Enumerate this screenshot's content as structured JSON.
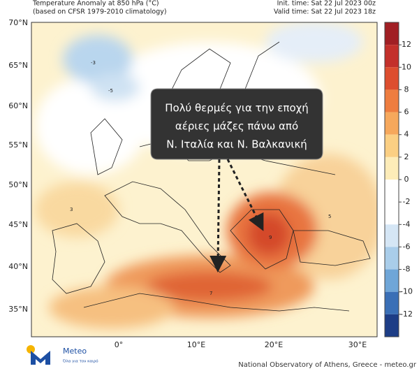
{
  "header": {
    "title": "Temperature Anomaly at 850 hPa (°C)",
    "subtitle": "(based on CFSR 1979-2010 climatology)",
    "init_time": "Init. time: Sat 22 Jul 2023 00z",
    "valid_time": "Valid time: Sat 22 Jul 2023 18z"
  },
  "map": {
    "lat_labels": [
      "70°N",
      "65°N",
      "60°N",
      "55°N",
      "50°N",
      "45°N",
      "40°N",
      "35°N"
    ],
    "lon_labels": [
      "0°",
      "10°E",
      "20°E",
      "30°E"
    ]
  },
  "colorbar": {
    "ticks": [
      12,
      10,
      8,
      6,
      4,
      2,
      0,
      -2,
      -4,
      -6,
      -8,
      -10,
      -12
    ],
    "colors": [
      "#a11f24",
      "#c3302b",
      "#dd4e2f",
      "#ee7d3f",
      "#f6a85c",
      "#fbcf83",
      "#fdecb8",
      "#ffffff",
      "#ffffff",
      "#d5e6f5",
      "#a9cdea",
      "#6fa6d8",
      "#3a6fb6",
      "#1d3d86"
    ]
  },
  "callout": {
    "lines": [
      "Πολύ θερμές για την εποχή",
      "αέριες μάζες πάνω από",
      "Ν. Ιταλία και Ν. Βαλκανική"
    ]
  },
  "footer": {
    "logo_name": "Meteo",
    "logo_tagline": "Όλα για τον καιρό",
    "credit": "National Observatory of Athens, Greece - meteo.gr"
  }
}
